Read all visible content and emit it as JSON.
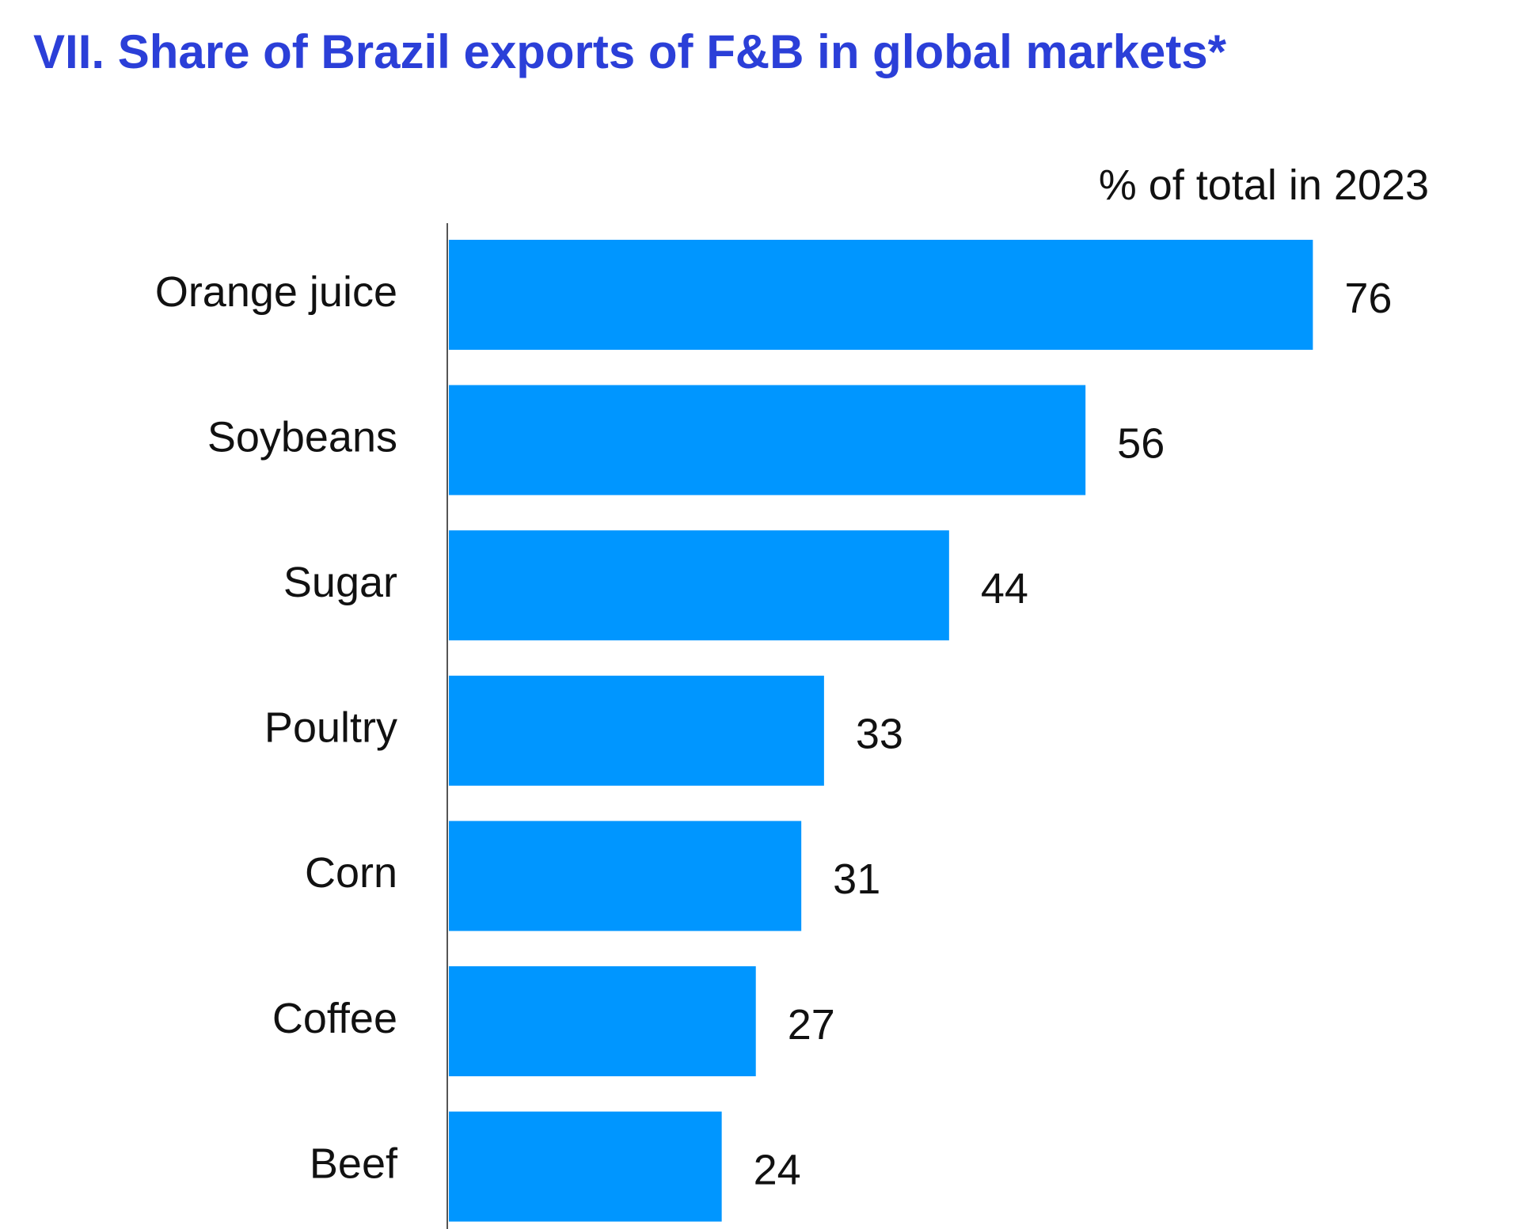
{
  "chart_data": {
    "type": "bar",
    "orientation": "horizontal",
    "title": "VII. Share of Brazil exports of F&B in global markets*",
    "subtitle": "% of total in 2023",
    "categories": [
      "Orange juice",
      "Soybeans",
      "Sugar",
      "Poultry",
      "Corn",
      "Coffee",
      "Beef"
    ],
    "values": [
      76,
      56,
      44,
      33,
      31,
      27,
      24
    ],
    "color": "#0096ff"
  }
}
